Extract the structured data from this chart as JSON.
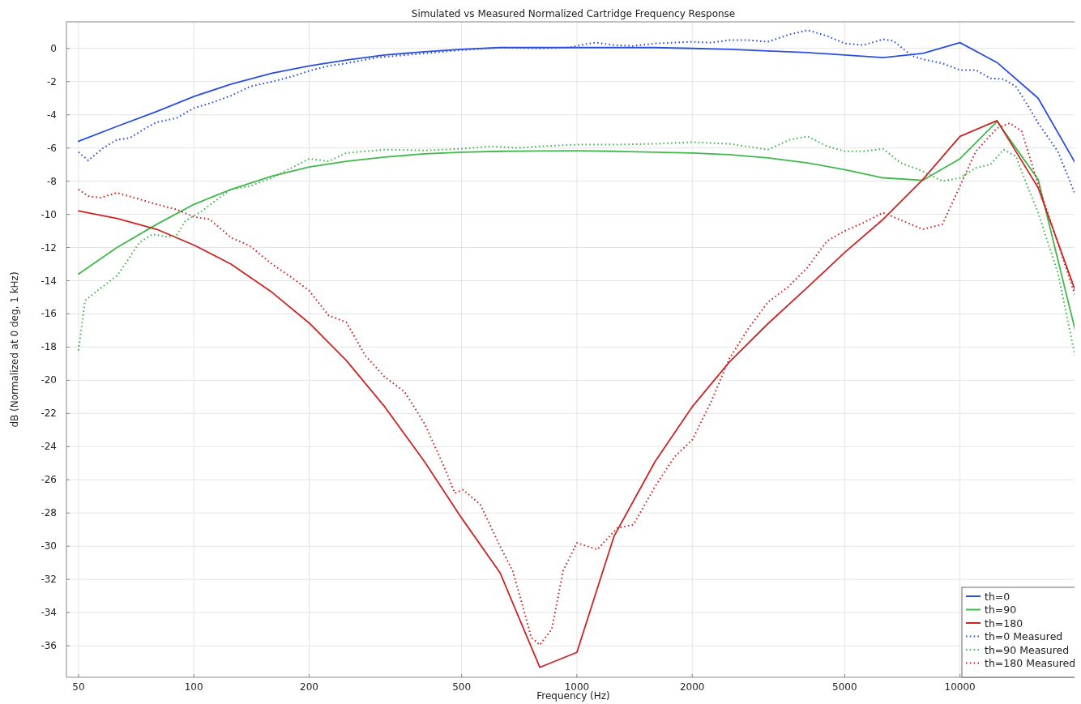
{
  "chart_data": {
    "type": "line",
    "title": "Simulated vs Measured Normalized Cartridge Frequency Response",
    "xlabel": "Frequency (Hz)",
    "ylabel": "dB (Normalized at 0 deg, 1 kHz)",
    "log": "x",
    "grid": true,
    "legend": "bottom right",
    "xlim": [
      46.5,
      20600
    ],
    "ylim": [
      -37.9,
      1.6
    ],
    "xticks": [
      50,
      100,
      200,
      500,
      1000,
      2000,
      5000,
      10000
    ],
    "yticks": [
      0,
      -2,
      -4,
      -6,
      -8,
      -10,
      -12,
      -14,
      -16,
      -18,
      -20,
      -22,
      -24,
      -26,
      -28,
      -30,
      -32,
      -34,
      -36
    ],
    "series": [
      {
        "name": "th=0",
        "color": "#2a4ee0",
        "line_style": "solid",
        "x": [
          50,
          63,
          80,
          100,
          125,
          160,
          200,
          250,
          315,
          400,
          500,
          630,
          800,
          1000,
          1250,
          1600,
          2000,
          2500,
          3150,
          4000,
          5000,
          6300,
          8000,
          10000,
          12500,
          16000,
          20000
        ],
        "values": [
          -5.6,
          -4.7,
          -3.8,
          -2.9,
          -2.15,
          -1.5,
          -1.05,
          -0.7,
          -0.4,
          -0.2,
          -0.05,
          0.05,
          0.05,
          0.05,
          0.05,
          0.05,
          0,
          -0.05,
          -0.15,
          -0.25,
          -0.4,
          -0.55,
          -0.3,
          0.35,
          -0.85,
          -3.0,
          -6.9
        ]
      },
      {
        "name": "th=90",
        "color": "#40b84c",
        "line_style": "solid",
        "x": [
          50,
          63,
          80,
          100,
          125,
          160,
          200,
          250,
          315,
          400,
          500,
          630,
          800,
          1000,
          1250,
          1600,
          2000,
          2500,
          3150,
          4000,
          5000,
          6300,
          8000,
          10000,
          12500,
          16000,
          20000
        ],
        "values": [
          -13.6,
          -12.0,
          -10.6,
          -9.4,
          -8.5,
          -7.7,
          -7.15,
          -6.8,
          -6.55,
          -6.35,
          -6.25,
          -6.2,
          -6.18,
          -6.17,
          -6.2,
          -6.25,
          -6.3,
          -6.4,
          -6.6,
          -6.9,
          -7.3,
          -7.8,
          -7.95,
          -6.65,
          -4.4,
          -7.9,
          -17.0
        ]
      },
      {
        "name": "th=180",
        "color": "#cc2424",
        "line_style": "solid",
        "x": [
          50,
          63,
          80,
          100,
          125,
          160,
          200,
          250,
          315,
          400,
          500,
          630,
          800,
          1000,
          1250,
          1600,
          2000,
          2500,
          3150,
          4000,
          5000,
          6300,
          8000,
          10000,
          12500,
          16000,
          20000
        ],
        "values": [
          -9.8,
          -10.25,
          -10.9,
          -11.85,
          -13.0,
          -14.7,
          -16.55,
          -18.8,
          -21.6,
          -24.9,
          -28.3,
          -31.6,
          -37.3,
          -36.4,
          -29.4,
          -24.9,
          -21.6,
          -18.9,
          -16.6,
          -14.4,
          -12.3,
          -10.3,
          -7.9,
          -5.3,
          -4.35,
          -8.4,
          -14.6
        ]
      },
      {
        "name": "th=0 Measured",
        "color": "#2a4ee0",
        "line_style": "dotted",
        "x": [
          50,
          53,
          58,
          63,
          68,
          75,
          80,
          90,
          100,
          112,
          125,
          140,
          160,
          180,
          200,
          225,
          250,
          300,
          400,
          500,
          630,
          800,
          950,
          1050,
          1120,
          1250,
          1400,
          1600,
          1800,
          2000,
          2240,
          2500,
          2800,
          3150,
          3600,
          4000,
          4500,
          5000,
          5600,
          6300,
          6700,
          7500,
          8000,
          9000,
          10000,
          11000,
          12000,
          13000,
          14000,
          15000,
          16000,
          18000,
          20000
        ],
        "values": [
          -6.25,
          -6.75,
          -6.0,
          -5.5,
          -5.4,
          -4.8,
          -4.45,
          -4.2,
          -3.6,
          -3.25,
          -2.85,
          -2.3,
          -2.0,
          -1.7,
          -1.35,
          -1.05,
          -0.9,
          -0.55,
          -0.3,
          -0.1,
          0.05,
          0.0,
          0.05,
          0.25,
          0.35,
          0.2,
          0.15,
          0.3,
          0.35,
          0.4,
          0.35,
          0.5,
          0.5,
          0.4,
          0.85,
          1.1,
          0.75,
          0.3,
          0.2,
          0.55,
          0.45,
          -0.45,
          -0.65,
          -0.9,
          -1.3,
          -1.3,
          -1.8,
          -1.85,
          -2.3,
          -3.4,
          -4.5,
          -6.2,
          -8.8
        ]
      },
      {
        "name": "th=90 Measured",
        "color": "#40b84c",
        "line_style": "dotted",
        "x": [
          50,
          52,
          56,
          63,
          68,
          72,
          78,
          85,
          90,
          95,
          105,
          112,
          125,
          140,
          160,
          180,
          200,
          225,
          250,
          315,
          400,
          500,
          600,
          700,
          800,
          1000,
          1250,
          1600,
          2000,
          2500,
          3150,
          3600,
          4000,
          4500,
          5000,
          5600,
          6300,
          7000,
          8000,
          9000,
          10000,
          11000,
          12000,
          13000,
          14000,
          15000,
          16000,
          18000,
          20000
        ],
        "values": [
          -18.2,
          -15.2,
          -14.6,
          -13.7,
          -12.6,
          -11.7,
          -11.2,
          -11.35,
          -11.3,
          -10.4,
          -9.8,
          -9.3,
          -8.5,
          -8.3,
          -7.8,
          -7.2,
          -6.65,
          -6.8,
          -6.3,
          -6.1,
          -6.15,
          -6.05,
          -5.9,
          -6.0,
          -5.9,
          -5.8,
          -5.8,
          -5.75,
          -5.65,
          -5.75,
          -6.1,
          -5.5,
          -5.3,
          -5.9,
          -6.2,
          -6.2,
          -6.05,
          -6.9,
          -7.4,
          -8.0,
          -7.8,
          -7.2,
          -7.0,
          -6.1,
          -6.5,
          -8.3,
          -9.9,
          -13.5,
          -18.6
        ]
      },
      {
        "name": "th=180 Measured",
        "color": "#cc2424",
        "line_style": "dotted",
        "x": [
          50,
          53,
          57,
          63,
          70,
          80,
          90,
          100,
          110,
          125,
          140,
          160,
          180,
          200,
          225,
          250,
          280,
          315,
          355,
          400,
          450,
          480,
          505,
          560,
          630,
          680,
          720,
          760,
          800,
          860,
          920,
          1000,
          1130,
          1275,
          1405,
          1600,
          1800,
          2000,
          2240,
          2500,
          2800,
          3150,
          3550,
          4000,
          4500,
          5000,
          5600,
          6300,
          7100,
          8000,
          9000,
          10000,
          11000,
          12500,
          13500,
          14500,
          16000,
          18000,
          20000
        ],
        "values": [
          -8.5,
          -8.9,
          -9.0,
          -8.7,
          -9.0,
          -9.4,
          -9.7,
          -10.15,
          -10.3,
          -11.4,
          -11.9,
          -13.0,
          -13.8,
          -14.6,
          -16.1,
          -16.5,
          -18.5,
          -19.8,
          -20.7,
          -22.6,
          -25.2,
          -26.8,
          -26.6,
          -27.5,
          -30.0,
          -31.5,
          -33.5,
          -35.5,
          -35.95,
          -35.0,
          -31.5,
          -29.8,
          -30.2,
          -28.9,
          -28.7,
          -26.4,
          -24.6,
          -23.6,
          -21.3,
          -18.7,
          -16.9,
          -15.3,
          -14.4,
          -13.2,
          -11.6,
          -11.0,
          -10.5,
          -9.9,
          -10.4,
          -10.9,
          -10.6,
          -8.3,
          -6.2,
          -4.8,
          -4.5,
          -5.0,
          -8.2,
          -11.7,
          -14.9
        ]
      }
    ]
  }
}
